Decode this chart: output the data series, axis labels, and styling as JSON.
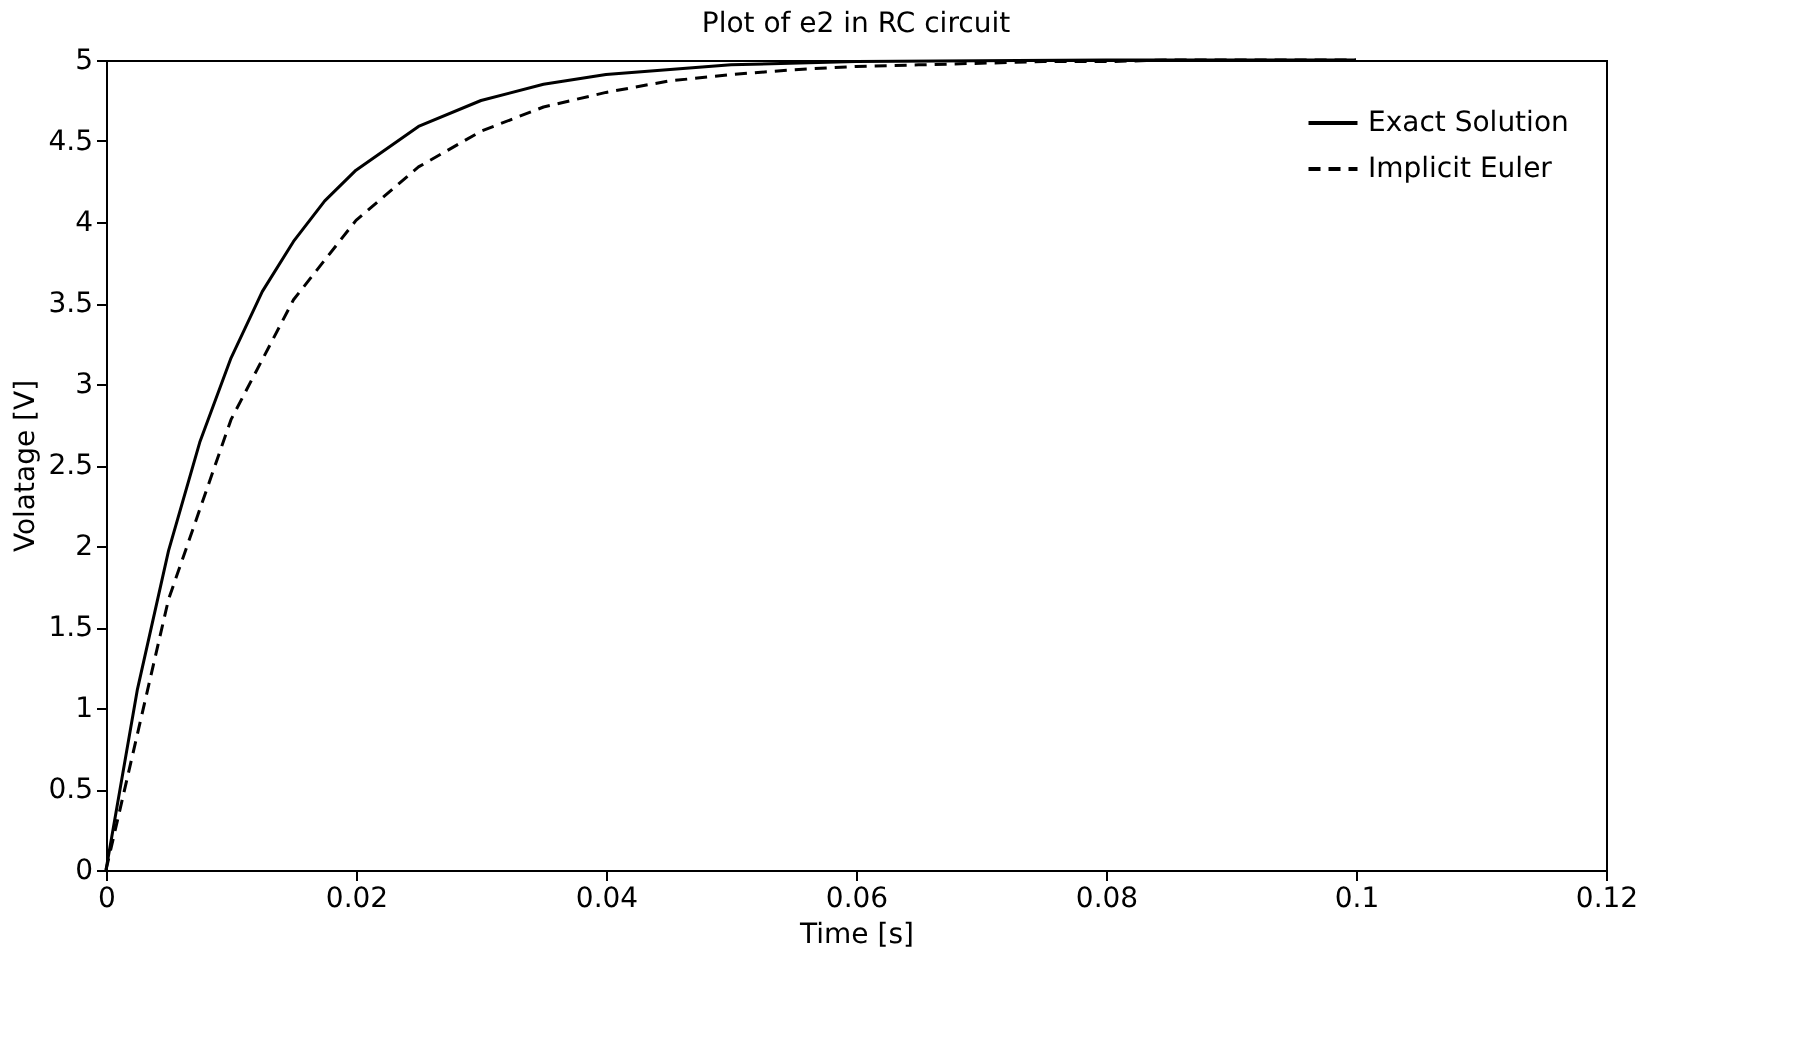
{
  "chart_data": {
    "type": "line",
    "title": "Plot of e2 in RC circuit",
    "xlabel": "Time [s]",
    "ylabel": "Volatage [V]",
    "series": [
      {
        "name": "Exact Solution",
        "color": "#000000",
        "line_style": "solid",
        "x": [
          0,
          0.0025,
          0.005,
          0.0075,
          0.01,
          0.0125,
          0.015,
          0.0175,
          0.02,
          0.025,
          0.03,
          0.035,
          0.04,
          0.05,
          0.06,
          0.08,
          0.1
        ],
        "values": [
          0,
          1.11,
          1.97,
          2.64,
          3.16,
          3.57,
          3.88,
          4.13,
          4.32,
          4.59,
          4.75,
          4.85,
          4.91,
          4.97,
          4.99,
          5.0,
          5.0
        ]
      },
      {
        "name": "Implicit Euler",
        "color": "#000000",
        "line_style": "dashed",
        "x": [
          0,
          0.005,
          0.01,
          0.015,
          0.02,
          0.025,
          0.03,
          0.035,
          0.04,
          0.045,
          0.05,
          0.055,
          0.06,
          0.065,
          0.07,
          0.075,
          0.08,
          0.085,
          0.09,
          0.095,
          0.1
        ],
        "values": [
          0,
          1.67,
          2.78,
          3.52,
          4.01,
          4.34,
          4.56,
          4.71,
          4.8,
          4.87,
          4.91,
          4.94,
          4.96,
          4.97,
          4.98,
          4.99,
          4.99,
          5.0,
          5.0,
          5.0,
          5.0
        ]
      }
    ],
    "xlim": [
      0,
      0.12
    ],
    "xticks": [
      0,
      0.02,
      0.04,
      0.06,
      0.08,
      0.1,
      0.12
    ],
    "ylim": [
      0,
      5
    ],
    "yticks": [
      0,
      0.5,
      1,
      1.5,
      2,
      2.5,
      3,
      3.5,
      4,
      4.5,
      5
    ],
    "grid": false,
    "legend": "top right",
    "marker": "none"
  }
}
